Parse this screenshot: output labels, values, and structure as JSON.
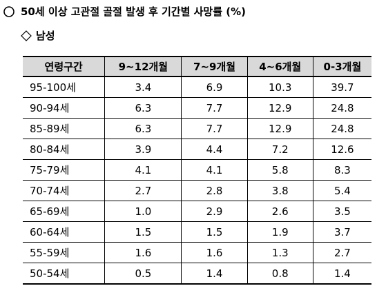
{
  "header": {
    "title": "50세 이상 고관절 골절 발생 후 기간별 사망률 (%)",
    "subtitle": "남성"
  },
  "table": {
    "columns": [
      "연령구간",
      "9~12개월",
      "7~9개월",
      "4~6개월",
      "0-3개월"
    ],
    "rows": [
      [
        "95-100세",
        "3.4",
        "6.9",
        "10.3",
        "39.7"
      ],
      [
        "90-94세",
        "6.3",
        "7.7",
        "12.9",
        "24.8"
      ],
      [
        "85-89세",
        "6.3",
        "7.7",
        "12.9",
        "24.8"
      ],
      [
        "80-84세",
        "3.9",
        "4.4",
        "7.2",
        "12.6"
      ],
      [
        "75-79세",
        "4.1",
        "4.1",
        "5.8",
        "8.3"
      ],
      [
        "70-74세",
        "2.7",
        "2.8",
        "3.8",
        "5.4"
      ],
      [
        "65-69세",
        "1.0",
        "2.9",
        "2.6",
        "3.5"
      ],
      [
        "60-64세",
        "1.5",
        "1.5",
        "1.9",
        "3.7"
      ],
      [
        "55-59세",
        "1.6",
        "1.6",
        "1.3",
        "2.7"
      ],
      [
        "50-54세",
        "0.5",
        "1.4",
        "0.8",
        "1.4"
      ]
    ]
  }
}
